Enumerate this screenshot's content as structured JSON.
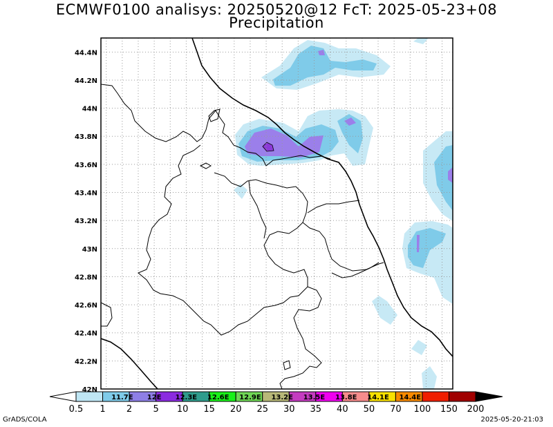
{
  "title": {
    "line1": "ECMWF0100 analisys: 20250520@12 FcT: 2025-05-23+08",
    "line2": "Precipitation"
  },
  "map": {
    "lat_range": [
      42.0,
      44.5
    ],
    "lon_range": [
      11.5,
      14.8
    ],
    "lat_ticks": [
      "42N",
      "42.2N",
      "42.4N",
      "42.6N",
      "42.8N",
      "43N",
      "43.2N",
      "43.4N",
      "43.6N",
      "43.8N",
      "44N",
      "44.2N",
      "44.4N"
    ],
    "lon_ticks": [
      "11.7E",
      "12E",
      "12.3E",
      "12.6E",
      "12.9E",
      "13.2E",
      "13.5E",
      "13.8E",
      "14.1E",
      "14.4E"
    ],
    "grid": true
  },
  "colorbar": {
    "levels": [
      "0.5",
      "1",
      "2",
      "5",
      "10",
      "15",
      "20",
      "25",
      "30",
      "35",
      "40",
      "50",
      "70",
      "100",
      "150",
      "200"
    ],
    "colors": [
      "#ffffff",
      "#bfe6f4",
      "#7fcbe9",
      "#8e7fe6",
      "#8b2be0",
      "#2f9c8c",
      "#19f019",
      "#6fd655",
      "#b8b878",
      "#c43cc0",
      "#f000f0",
      "#f78c8c",
      "#f8e000",
      "#f88a00",
      "#f01e00",
      "#a00000",
      "#000000"
    ]
  },
  "colors": {
    "precip_light": "#c7e9f5",
    "precip_medium": "#7fcbe9",
    "precip_heavy": "#9b7fea",
    "precip_veryheavy": "#8b3ad8"
  },
  "footer": {
    "left": "GrADS/COLA",
    "right": "2025-05-20-21:03"
  }
}
